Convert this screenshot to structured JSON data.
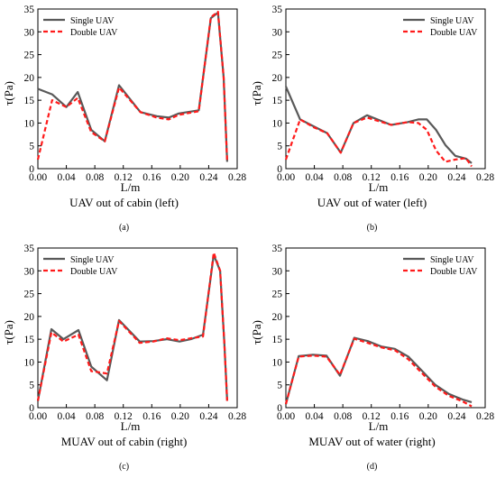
{
  "colors": {
    "single": "#595959",
    "double": "#ff1a1a",
    "axis": "#000000"
  },
  "chart_data": [
    {
      "id": "a",
      "type": "line",
      "title": "UAV out of cabin (left)",
      "panel_label": "(a)",
      "xlabel": "L/m",
      "ylabel": "τ(Pa)",
      "xlim": [
        0,
        0.28
      ],
      "ylim": [
        0,
        35
      ],
      "xticks": [
        "0.00",
        "0.04",
        "0.08",
        "0.12",
        "0.16",
        "0.20",
        "0.24",
        "0.28"
      ],
      "yticks": [
        "0",
        "5",
        "10",
        "15",
        "20",
        "25",
        "30",
        "35"
      ],
      "legend_position": "top-left",
      "series": [
        {
          "name": "Single UAV",
          "style": "solid",
          "color": "#595959",
          "x": [
            0.0,
            0.02,
            0.04,
            0.056,
            0.075,
            0.094,
            0.114,
            0.144,
            0.167,
            0.184,
            0.198,
            0.226,
            0.243,
            0.253,
            0.261,
            0.266
          ],
          "y": [
            17.5,
            16.3,
            13.5,
            16.8,
            8.5,
            6.0,
            18.3,
            12.4,
            11.5,
            11.2,
            12.1,
            12.8,
            33.0,
            34.2,
            20.0,
            1.5
          ]
        },
        {
          "name": "Double UAV",
          "style": "dashed",
          "color": "#ff1a1a",
          "x": [
            0.0,
            0.02,
            0.04,
            0.056,
            0.075,
            0.094,
            0.114,
            0.144,
            0.167,
            0.184,
            0.198,
            0.226,
            0.243,
            0.253,
            0.261,
            0.266
          ],
          "y": [
            2.0,
            15.0,
            13.5,
            15.5,
            8.0,
            6.0,
            17.8,
            12.4,
            11.2,
            10.8,
            11.8,
            12.6,
            33.2,
            34.4,
            20.0,
            1.5
          ]
        }
      ]
    },
    {
      "id": "b",
      "type": "line",
      "title": "UAV out of water (left)",
      "panel_label": "(b)",
      "xlabel": "L/m",
      "ylabel": "τ(Pa)",
      "xlim": [
        0,
        0.28
      ],
      "ylim": [
        0,
        35
      ],
      "xticks": [
        "0.00",
        "0.04",
        "0.08",
        "0.12",
        "0.16",
        "0.20",
        "0.24",
        "0.28"
      ],
      "yticks": [
        "0",
        "5",
        "10",
        "15",
        "20",
        "25",
        "30",
        "35"
      ],
      "legend_position": "top-right",
      "series": [
        {
          "name": "Single UAV",
          "style": "solid",
          "color": "#595959",
          "x": [
            0.0,
            0.02,
            0.04,
            0.058,
            0.077,
            0.095,
            0.114,
            0.148,
            0.171,
            0.186,
            0.198,
            0.211,
            0.224,
            0.238,
            0.253,
            0.261
          ],
          "y": [
            18.0,
            10.8,
            9.2,
            7.8,
            3.5,
            10.0,
            11.7,
            9.6,
            10.2,
            10.8,
            10.8,
            8.5,
            5.2,
            2.8,
            2.2,
            1.2
          ]
        },
        {
          "name": "Double UAV",
          "style": "dashed",
          "color": "#ff1a1a",
          "x": [
            0.0,
            0.02,
            0.04,
            0.058,
            0.077,
            0.095,
            0.114,
            0.148,
            0.171,
            0.186,
            0.198,
            0.211,
            0.224,
            0.238,
            0.253,
            0.261
          ],
          "y": [
            2.0,
            10.8,
            9.0,
            7.8,
            3.5,
            10.0,
            11.2,
            9.6,
            10.2,
            10.0,
            8.5,
            4.0,
            1.5,
            2.0,
            2.3,
            0.5
          ]
        }
      ]
    },
    {
      "id": "c",
      "type": "line",
      "title": "MUAV out of cabin (right)",
      "panel_label": "(c)",
      "xlabel": "L/m",
      "ylabel": "τ(Pa)",
      "xlim": [
        0,
        0.28
      ],
      "ylim": [
        0,
        35
      ],
      "xticks": [
        "0.00",
        "0.04",
        "0.08",
        "0.12",
        "0.16",
        "0.20",
        "0.24",
        "0.28"
      ],
      "yticks": [
        "0",
        "5",
        "10",
        "15",
        "20",
        "25",
        "30",
        "35"
      ],
      "legend_position": "top-left",
      "series": [
        {
          "name": "Single UAV",
          "style": "solid",
          "color": "#595959",
          "x": [
            0.0,
            0.019,
            0.036,
            0.057,
            0.075,
            0.097,
            0.114,
            0.143,
            0.162,
            0.181,
            0.199,
            0.215,
            0.232,
            0.247,
            0.256,
            0.262,
            0.266
          ],
          "y": [
            1.5,
            17.2,
            15.0,
            17.0,
            9.0,
            6.0,
            19.2,
            14.5,
            14.6,
            15.0,
            14.5,
            15.0,
            16.0,
            33.5,
            30.0,
            14.0,
            1.5
          ]
        },
        {
          "name": "Double UAV",
          "style": "dashed",
          "color": "#ff1a1a",
          "x": [
            0.0,
            0.019,
            0.036,
            0.057,
            0.075,
            0.097,
            0.114,
            0.143,
            0.162,
            0.181,
            0.199,
            0.215,
            0.232,
            0.247,
            0.256,
            0.262,
            0.266
          ],
          "y": [
            1.5,
            16.5,
            14.5,
            16.0,
            8.0,
            7.5,
            19.0,
            14.2,
            14.5,
            15.2,
            14.8,
            15.2,
            15.6,
            34.0,
            30.0,
            14.0,
            1.5
          ]
        }
      ]
    },
    {
      "id": "d",
      "type": "line",
      "title": "MUAV out of water (right)",
      "panel_label": "(d)",
      "xlabel": "L/m",
      "ylabel": "τ(Pa)",
      "xlim": [
        0,
        0.28
      ],
      "ylim": [
        0,
        35
      ],
      "xticks": [
        "0.00",
        "0.04",
        "0.08",
        "0.12",
        "0.16",
        "0.20",
        "0.24",
        "0.28"
      ],
      "yticks": [
        "0",
        "5",
        "10",
        "15",
        "20",
        "25",
        "30",
        "35"
      ],
      "legend_position": "top-right",
      "series": [
        {
          "name": "Single UAV",
          "style": "solid",
          "color": "#595959",
          "x": [
            0.0,
            0.018,
            0.038,
            0.057,
            0.076,
            0.096,
            0.115,
            0.134,
            0.153,
            0.172,
            0.191,
            0.21,
            0.229,
            0.248,
            0.261
          ],
          "y": [
            0.8,
            11.3,
            11.6,
            11.4,
            7.0,
            15.3,
            14.6,
            13.4,
            12.9,
            11.2,
            8.1,
            5.0,
            3.0,
            1.8,
            1.2
          ]
        },
        {
          "name": "Double UAV",
          "style": "dashed",
          "color": "#ff1a1a",
          "x": [
            0.0,
            0.018,
            0.038,
            0.057,
            0.076,
            0.096,
            0.115,
            0.134,
            0.153,
            0.172,
            0.191,
            0.21,
            0.229,
            0.248,
            0.261
          ],
          "y": [
            0.8,
            11.2,
            11.4,
            11.2,
            7.2,
            15.1,
            14.2,
            13.2,
            12.6,
            10.6,
            7.6,
            4.6,
            2.6,
            1.4,
            0.3
          ]
        }
      ]
    }
  ]
}
